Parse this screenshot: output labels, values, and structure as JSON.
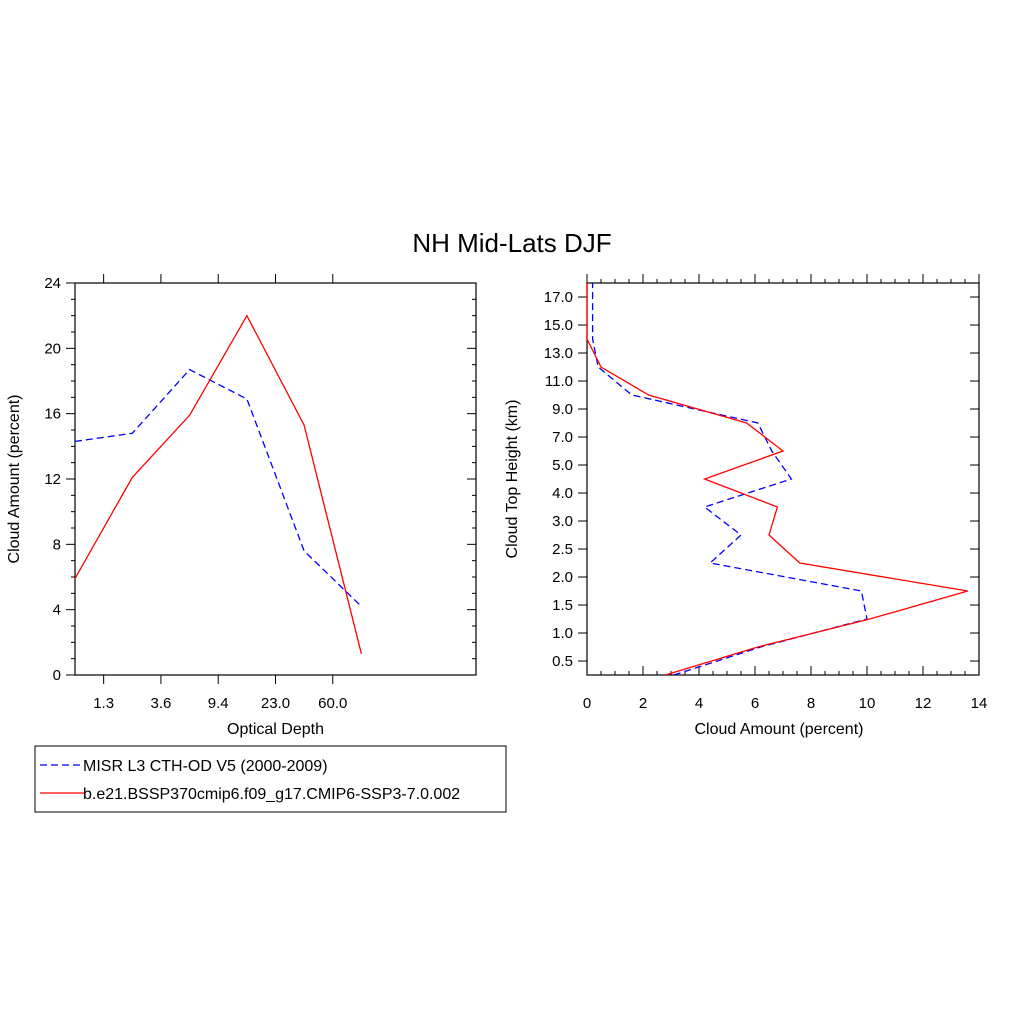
{
  "figure": {
    "title": "NH Mid-Lats DJF",
    "legend": [
      {
        "label": "MISR L3 CTH-OD V5 (2000-2009)",
        "color": "#0000ff",
        "dash": true
      },
      {
        "label": "b.e21.BSSP370cmip6.f09_g17.CMIP6-SSP3-7.0.002",
        "color": "#ff0000",
        "dash": false
      }
    ],
    "legend_position": "bottom-left"
  },
  "chart_data": [
    {
      "type": "line",
      "xlabel": "Optical Depth",
      "ylabel": "Cloud Amount (percent)",
      "ylim": [
        0,
        24
      ],
      "xlim": [
        0,
        7
      ],
      "x_ticks": [
        {
          "pos": 0.5,
          "label": "1.3"
        },
        {
          "pos": 1.5,
          "label": "3.6"
        },
        {
          "pos": 2.5,
          "label": "9.4"
        },
        {
          "pos": 3.5,
          "label": "23.0"
        },
        {
          "pos": 4.5,
          "label": "60.0"
        }
      ],
      "y_ticks": [
        0,
        4,
        8,
        12,
        16,
        20,
        24
      ],
      "x": [
        0,
        1,
        2,
        3,
        4,
        5
      ],
      "series": [
        {
          "name": "MISR L3 CTH-OD V5 (2000-2009)",
          "color": "#0000ff",
          "dash": true,
          "values": [
            14.3,
            14.8,
            18.7,
            16.9,
            7.6,
            4.2
          ]
        },
        {
          "name": "b.e21.BSSP370cmip6.f09_g17.CMIP6-SSP3-7.0.002",
          "color": "#ff0000",
          "dash": false,
          "values": [
            5.9,
            12.1,
            15.9,
            22.0,
            15.3,
            1.3
          ]
        }
      ]
    },
    {
      "type": "line",
      "xlabel": "Cloud Amount (percent)",
      "ylabel": "Cloud Top Height (km)",
      "xlim": [
        0,
        14
      ],
      "ylim": [
        0,
        14
      ],
      "x_ticks": [
        0,
        2,
        4,
        6,
        8,
        10,
        12,
        14
      ],
      "y_ticks": [
        {
          "pos": 0.5,
          "label": "0.5"
        },
        {
          "pos": 1.5,
          "label": "1.0"
        },
        {
          "pos": 2.5,
          "label": "1.5"
        },
        {
          "pos": 3.5,
          "label": "2.0"
        },
        {
          "pos": 4.5,
          "label": "2.5"
        },
        {
          "pos": 5.5,
          "label": "3.0"
        },
        {
          "pos": 6.5,
          "label": "4.0"
        },
        {
          "pos": 7.5,
          "label": "5.0"
        },
        {
          "pos": 8.5,
          "label": "7.0"
        },
        {
          "pos": 9.5,
          "label": "9.0"
        },
        {
          "pos": 10.5,
          "label": "11.0"
        },
        {
          "pos": 11.5,
          "label": "13.0"
        },
        {
          "pos": 12.5,
          "label": "15.0"
        },
        {
          "pos": 13.5,
          "label": "17.0"
        }
      ],
      "levels": [
        0,
        1,
        2,
        3,
        4,
        5,
        6,
        7,
        8,
        9,
        10,
        11,
        12,
        13,
        14
      ],
      "series": [
        {
          "name": "MISR L3 CTH-OD V5 (2000-2009)",
          "color": "#0000ff",
          "dash": true,
          "values": [
            3.1,
            6.2,
            10.0,
            9.8,
            4.4,
            5.5,
            4.2,
            7.3,
            6.6,
            6.1,
            1.6,
            0.4,
            0.2,
            0.2,
            0.2
          ]
        },
        {
          "name": "b.e21.BSSP370cmip6.f09_g17.CMIP6-SSP3-7.0.002",
          "color": "#ff0000",
          "dash": false,
          "values": [
            2.8,
            6.1,
            10.1,
            13.6,
            7.6,
            6.5,
            6.8,
            4.2,
            7.0,
            5.7,
            2.2,
            0.5,
            0.0,
            0.0,
            0.0
          ]
        }
      ]
    }
  ]
}
